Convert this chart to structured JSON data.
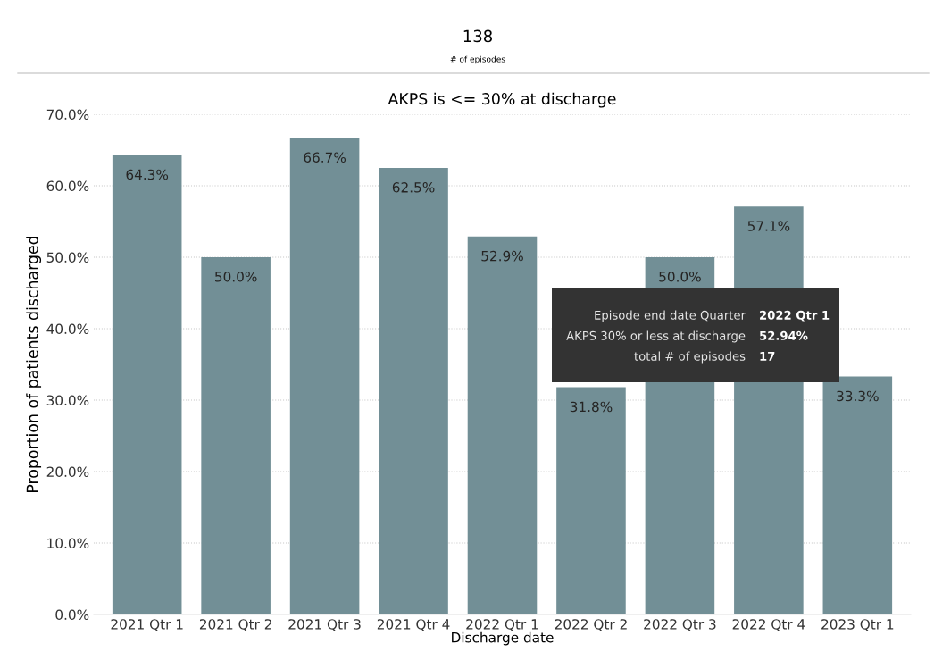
{
  "chart_data": {
    "type": "bar",
    "title": "AKPS is <= 30% at discharge",
    "xlabel": "Discharge date",
    "ylabel": "Proportion of patients discharged",
    "categories": [
      "2021 Qtr 1",
      "2021 Qtr 2",
      "2021 Qtr 3",
      "2021 Qtr 4",
      "2022 Qtr 1",
      "2022 Qtr 2",
      "2022 Qtr 3",
      "2022 Qtr 4",
      "2023 Qtr 1"
    ],
    "values": [
      64.3,
      50.0,
      66.7,
      62.5,
      52.9,
      31.8,
      50.0,
      57.1,
      33.3
    ],
    "value_labels": [
      "64.3%",
      "50.0%",
      "66.7%",
      "62.5%",
      "52.9%",
      "31.8%",
      "50.0%",
      "57.1%",
      "33.3%"
    ],
    "color": "#728f96",
    "ylim": [
      0,
      70
    ],
    "yticks": [
      {
        "value": 0,
        "label": "0.0%"
      },
      {
        "value": 10,
        "label": "10.0%"
      },
      {
        "value": 20,
        "label": "20.0%"
      },
      {
        "value": 30,
        "label": "30.0%"
      },
      {
        "value": 40,
        "label": "40.0%"
      },
      {
        "value": 50,
        "label": "50.0%"
      },
      {
        "value": 60,
        "label": "60.0%"
      },
      {
        "value": 70,
        "label": "70.0%"
      }
    ],
    "grid": "y",
    "line_style": "dotted",
    "annotations": [
      "138",
      "# of episodes",
      "Episode end date Quarter",
      "2022 Qtr 1",
      "AKPS 30% or less at discharge",
      "52.94%",
      "total # of episodes",
      "17"
    ]
  }
}
